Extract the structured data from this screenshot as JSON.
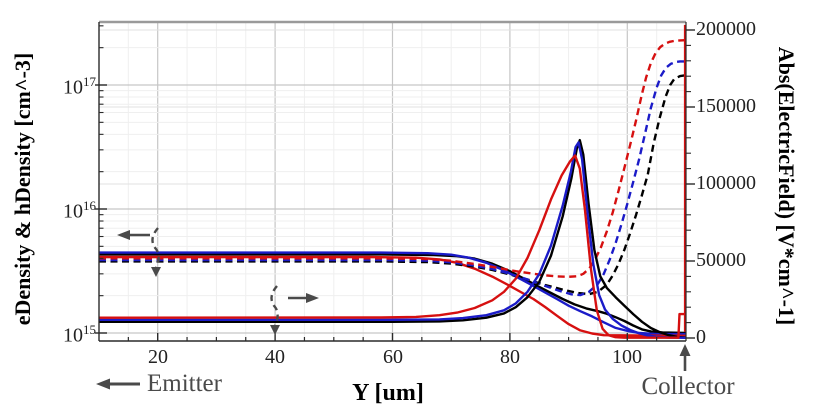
{
  "axes": {
    "x": {
      "label": "Y [um]",
      "major_ticks": [
        20,
        40,
        60,
        80,
        100
      ],
      "minor_step_um": 5,
      "range_um": [
        10,
        110.5
      ]
    },
    "y_left": {
      "label": "eDensity & hDensity [cm^-3]",
      "scale": "log",
      "tick_exponents": [
        15,
        16,
        17
      ]
    },
    "y_right": {
      "label": "Abs(ElectricField) [V*cm^-1]",
      "major_ticks": [
        0,
        50000,
        100000,
        150000,
        200000
      ],
      "minor_step": 10000,
      "range": [
        0,
        200000
      ]
    }
  },
  "annotations": {
    "emitter_label": "Emitter",
    "collector_label": "Collector",
    "density_bundle_pointer": "arrow-to-left-axis",
    "field_bundle_pointer": "arrow-to-right-axis"
  },
  "colors": {
    "black": "#000000",
    "blue": "#1b1bc8",
    "red": "#d61010",
    "grid_major": "#c6c6c6",
    "grid_minor": "#efefef",
    "grid_right": "#e2e2e2",
    "spine": "#2a2a2a",
    "top_spine": "#9a9a9a",
    "annotation_gray": "#4a4a4a",
    "tick_label": "#222222"
  },
  "chart_data": {
    "type": "line",
    "title": "",
    "xlabel": "Y [um]",
    "ylabel_left": "eDensity & hDensity [cm^-3]",
    "ylabel_right": "Abs(ElectricField) [V*cm^-1]",
    "x_range_um": [
      10,
      110.5
    ],
    "y_left_log_range": [
      1000000000000000.0,
      3.2e+17
    ],
    "y_right_range": [
      0,
      200000
    ],
    "grid": true,
    "legend": false,
    "series": [
      {
        "name": "eDensity-black",
        "axis": "left",
        "color": "#000000",
        "dash": false,
        "points": [
          [
            10,
            4300000000000000.0
          ],
          [
            58,
            4300000000000000.0
          ],
          [
            67,
            4260000000000000.0
          ],
          [
            71,
            4160000000000000.0
          ],
          [
            74,
            3980000000000000.0
          ],
          [
            77,
            3620000000000000.0
          ],
          [
            80,
            3150000000000000.0
          ],
          [
            83,
            2650000000000000.0
          ],
          [
            85,
            2350000000000000.0
          ],
          [
            87,
            2100000000000000.0
          ],
          [
            89,
            1880000000000000.0
          ],
          [
            91,
            1700000000000000.0
          ],
          [
            93,
            1580000000000000.0
          ],
          [
            95,
            1500000000000000.0
          ],
          [
            96.5,
            1430000000000000.0
          ],
          [
            98,
            1340000000000000.0
          ],
          [
            99.5,
            1250000000000000.0
          ],
          [
            101,
            1150000000000000.0
          ],
          [
            102.5,
            1070000000000000.0
          ],
          [
            104,
            1030000000000000.0
          ],
          [
            106,
            1010000000000000.0
          ],
          [
            110,
            1000000000000000.0
          ]
        ]
      },
      {
        "name": "eDensity-blue",
        "axis": "left",
        "color": "#1b1bc8",
        "dash": false,
        "points": [
          [
            10,
            4450000000000000.0
          ],
          [
            58,
            4450000000000000.0
          ],
          [
            66,
            4400000000000000.0
          ],
          [
            70,
            4280000000000000.0
          ],
          [
            73,
            4050000000000000.0
          ],
          [
            76,
            3680000000000000.0
          ],
          [
            79,
            3200000000000000.0
          ],
          [
            82,
            2700000000000000.0
          ],
          [
            84,
            2400000000000000.0
          ],
          [
            86,
            2120000000000000.0
          ],
          [
            88,
            1880000000000000.0
          ],
          [
            90,
            1660000000000000.0
          ],
          [
            92,
            1500000000000000.0
          ],
          [
            94,
            1360000000000000.0
          ],
          [
            96,
            1220000000000000.0
          ],
          [
            98,
            1100000000000000.0
          ],
          [
            100,
            1040000000000000.0
          ],
          [
            102,
            1000000000000000.0
          ],
          [
            105,
            980000000000000.0
          ],
          [
            110,
            980000000000000.0
          ]
        ]
      },
      {
        "name": "eDensity-red",
        "axis": "left",
        "color": "#d61010",
        "dash": false,
        "points": [
          [
            10,
            4100000000000000.0
          ],
          [
            56,
            4100000000000000.0
          ],
          [
            64,
            4050000000000000.0
          ],
          [
            68,
            3920000000000000.0
          ],
          [
            71,
            3680000000000000.0
          ],
          [
            74,
            3300000000000000.0
          ],
          [
            77,
            2850000000000000.0
          ],
          [
            80,
            2400000000000000.0
          ],
          [
            82,
            2120000000000000.0
          ],
          [
            84,
            1880000000000000.0
          ],
          [
            86,
            1620000000000000.0
          ],
          [
            88,
            1380000000000000.0
          ],
          [
            90,
            1180000000000000.0
          ],
          [
            92,
            1050000000000000.0
          ],
          [
            94,
            990000000000000.0
          ],
          [
            96,
            960000000000000.0
          ],
          [
            110,
            950000000000000.0
          ]
        ]
      },
      {
        "name": "hDensity-black",
        "axis": "left",
        "color": "#000000",
        "dash": true,
        "points": [
          [
            10,
            3780000000000000.0
          ],
          [
            58,
            3780000000000000.0
          ],
          [
            66,
            3730000000000000.0
          ],
          [
            70,
            3630000000000000.0
          ],
          [
            74,
            3430000000000000.0
          ],
          [
            77,
            3220000000000000.0
          ],
          [
            80,
            2970000000000000.0
          ],
          [
            83,
            2700000000000000.0
          ],
          [
            86,
            2440000000000000.0
          ],
          [
            89,
            2240000000000000.0
          ],
          [
            91.5,
            2100000000000000.0
          ],
          [
            93.5,
            2060000000000000.0
          ],
          [
            95,
            2150000000000000.0
          ],
          [
            96.5,
            2450000000000000.0
          ],
          [
            97.5,
            2900000000000000.0
          ],
          [
            98.5,
            3600000000000000.0
          ],
          [
            99.5,
            4700000000000000.0
          ],
          [
            100.5,
            6400000000000000.0
          ],
          [
            101.5,
            9000000000000000.0
          ],
          [
            102.5,
            1.3e+16
          ],
          [
            103.5,
            1.9e+16
          ],
          [
            104.5,
            3.4e+16
          ],
          [
            105.5,
            5.4e+16
          ],
          [
            106.5,
            8e+16
          ],
          [
            107.3,
            1e+17
          ],
          [
            108,
            1.12e+17
          ],
          [
            109,
            1.18e+17
          ],
          [
            110,
            1.2e+17
          ]
        ]
      },
      {
        "name": "hDensity-blue",
        "axis": "left",
        "color": "#1b1bc8",
        "dash": true,
        "points": [
          [
            10,
            3880000000000000.0
          ],
          [
            58,
            3880000000000000.0
          ],
          [
            66,
            3830000000000000.0
          ],
          [
            70,
            3720000000000000.0
          ],
          [
            74,
            3500000000000000.0
          ],
          [
            77,
            3280000000000000.0
          ],
          [
            80,
            3000000000000000.0
          ],
          [
            83,
            2700000000000000.0
          ],
          [
            86,
            2400000000000000.0
          ],
          [
            88.5,
            2180000000000000.0
          ],
          [
            90.5,
            2050000000000000.0
          ],
          [
            92,
            2020000000000000.0
          ],
          [
            93.5,
            2150000000000000.0
          ],
          [
            95,
            2500000000000000.0
          ],
          [
            96,
            3000000000000000.0
          ],
          [
            97,
            3900000000000000.0
          ],
          [
            98,
            5300000000000000.0
          ],
          [
            99,
            7500000000000000.0
          ],
          [
            100,
            1.1e+16
          ],
          [
            101,
            1.65e+16
          ],
          [
            102,
            2.5e+16
          ],
          [
            103,
            4e+16
          ],
          [
            104,
            6.5e+16
          ],
          [
            105,
            9.5e+16
          ],
          [
            105.8,
            1.2e+17
          ],
          [
            106.6,
            1.38e+17
          ],
          [
            107.4,
            1.48e+17
          ],
          [
            108.2,
            1.53e+17
          ],
          [
            109,
            1.55e+17
          ],
          [
            110,
            1.55e+17
          ]
        ]
      },
      {
        "name": "hDensity-red",
        "axis": "left",
        "color": "#d61010",
        "dash": true,
        "points": [
          [
            10,
            4000000000000000.0
          ],
          [
            58,
            4000000000000000.0
          ],
          [
            66,
            3950000000000000.0
          ],
          [
            70,
            3830000000000000.0
          ],
          [
            74,
            3600000000000000.0
          ],
          [
            78,
            3350000000000000.0
          ],
          [
            81,
            3150000000000000.0
          ],
          [
            84,
            3000000000000000.0
          ],
          [
            86,
            2920000000000000.0
          ],
          [
            88,
            2860000000000000.0
          ],
          [
            90,
            2840000000000000.0
          ],
          [
            91.5,
            2870000000000000.0
          ],
          [
            92.5,
            3000000000000000.0
          ],
          [
            93.5,
            3300000000000000.0
          ],
          [
            94.5,
            3900000000000000.0
          ],
          [
            95.5,
            4900000000000000.0
          ],
          [
            96.5,
            6600000000000000.0
          ],
          [
            97.5,
            9300000000000000.0
          ],
          [
            98.5,
            1.4e+16
          ],
          [
            99.5,
            2.15e+16
          ],
          [
            100.5,
            3.3e+16
          ],
          [
            101.5,
            5.2e+16
          ],
          [
            102.5,
            8.5e+16
          ],
          [
            103.2,
            1.15e+17
          ],
          [
            104,
            1.5e+17
          ],
          [
            104.8,
            1.8e+17
          ],
          [
            105.6,
            2.02e+17
          ],
          [
            106.4,
            2.15e+17
          ],
          [
            107.2,
            2.23e+17
          ],
          [
            108,
            2.27e+17
          ],
          [
            109,
            2.29e+17
          ],
          [
            110,
            2.3e+17
          ]
        ]
      },
      {
        "name": "ElectricField-black",
        "axis": "right",
        "color": "#000000",
        "dash": false,
        "points": [
          [
            10,
            10500
          ],
          [
            60,
            10500
          ],
          [
            68,
            10800
          ],
          [
            72,
            11500
          ],
          [
            76,
            13200
          ],
          [
            79,
            16000
          ],
          [
            81,
            20000
          ],
          [
            83,
            26500
          ],
          [
            85,
            36500
          ],
          [
            87,
            53500
          ],
          [
            89,
            79000
          ],
          [
            90.5,
            104000
          ],
          [
            91.4,
            123000
          ],
          [
            91.9,
            128500
          ],
          [
            92.5,
            119000
          ],
          [
            93.4,
            87000
          ],
          [
            94.4,
            57000
          ],
          [
            95.4,
            40000
          ],
          [
            96.5,
            32500
          ],
          [
            98,
            26500
          ],
          [
            99.5,
            21000
          ],
          [
            101,
            15500
          ],
          [
            102.5,
            10500
          ],
          [
            104,
            6500
          ],
          [
            105.5,
            3800
          ],
          [
            107,
            1900
          ],
          [
            108.5,
            700
          ],
          [
            110,
            250
          ]
        ]
      },
      {
        "name": "ElectricField-blue",
        "axis": "right",
        "color": "#1b1bc8",
        "dash": false,
        "points": [
          [
            10,
            11800
          ],
          [
            60,
            11800
          ],
          [
            68,
            12100
          ],
          [
            72,
            12900
          ],
          [
            76,
            14800
          ],
          [
            79,
            18000
          ],
          [
            81,
            22500
          ],
          [
            83,
            30000
          ],
          [
            85,
            41500
          ],
          [
            87,
            60000
          ],
          [
            89,
            86000
          ],
          [
            90.4,
            108000
          ],
          [
            91.2,
            124000
          ],
          [
            91.7,
            127000
          ],
          [
            92.3,
            116000
          ],
          [
            93.2,
            82000
          ],
          [
            94.2,
            48000
          ],
          [
            95.2,
            28000
          ],
          [
            96.2,
            18500
          ],
          [
            97.5,
            12500
          ],
          [
            99,
            8200
          ],
          [
            100.5,
            5200
          ],
          [
            102,
            3100
          ],
          [
            103.5,
            1700
          ],
          [
            105,
            800
          ],
          [
            107,
            300
          ],
          [
            110,
            120
          ]
        ]
      },
      {
        "name": "ElectricField-red",
        "axis": "right",
        "color": "#d61010",
        "dash": false,
        "points": [
          [
            10,
            13200
          ],
          [
            58,
            13300
          ],
          [
            64,
            13700
          ],
          [
            68,
            14800
          ],
          [
            71,
            16500
          ],
          [
            74,
            19500
          ],
          [
            77,
            24500
          ],
          [
            79,
            30000
          ],
          [
            81,
            38500
          ],
          [
            83,
            52000
          ],
          [
            85,
            70000
          ],
          [
            87,
            90000
          ],
          [
            88.8,
            105500
          ],
          [
            90.2,
            114500
          ],
          [
            91.1,
            118500
          ],
          [
            91.9,
            110000
          ],
          [
            92.8,
            83000
          ],
          [
            93.8,
            45000
          ],
          [
            94.8,
            18000
          ],
          [
            95.8,
            6000
          ],
          [
            96.8,
            1800
          ],
          [
            98,
            500
          ],
          [
            99.5,
            200
          ],
          [
            108.7,
            200
          ],
          [
            108.9,
            15500
          ],
          [
            109.9,
            15500
          ]
        ]
      },
      {
        "name": "hDensity-red-collector-contact-drop",
        "axis": "left",
        "color": "#d61010",
        "dash": false,
        "points": [
          [
            109.85,
            3.05e+17
          ],
          [
            109.85,
            1020000000000000.0
          ]
        ]
      }
    ]
  }
}
